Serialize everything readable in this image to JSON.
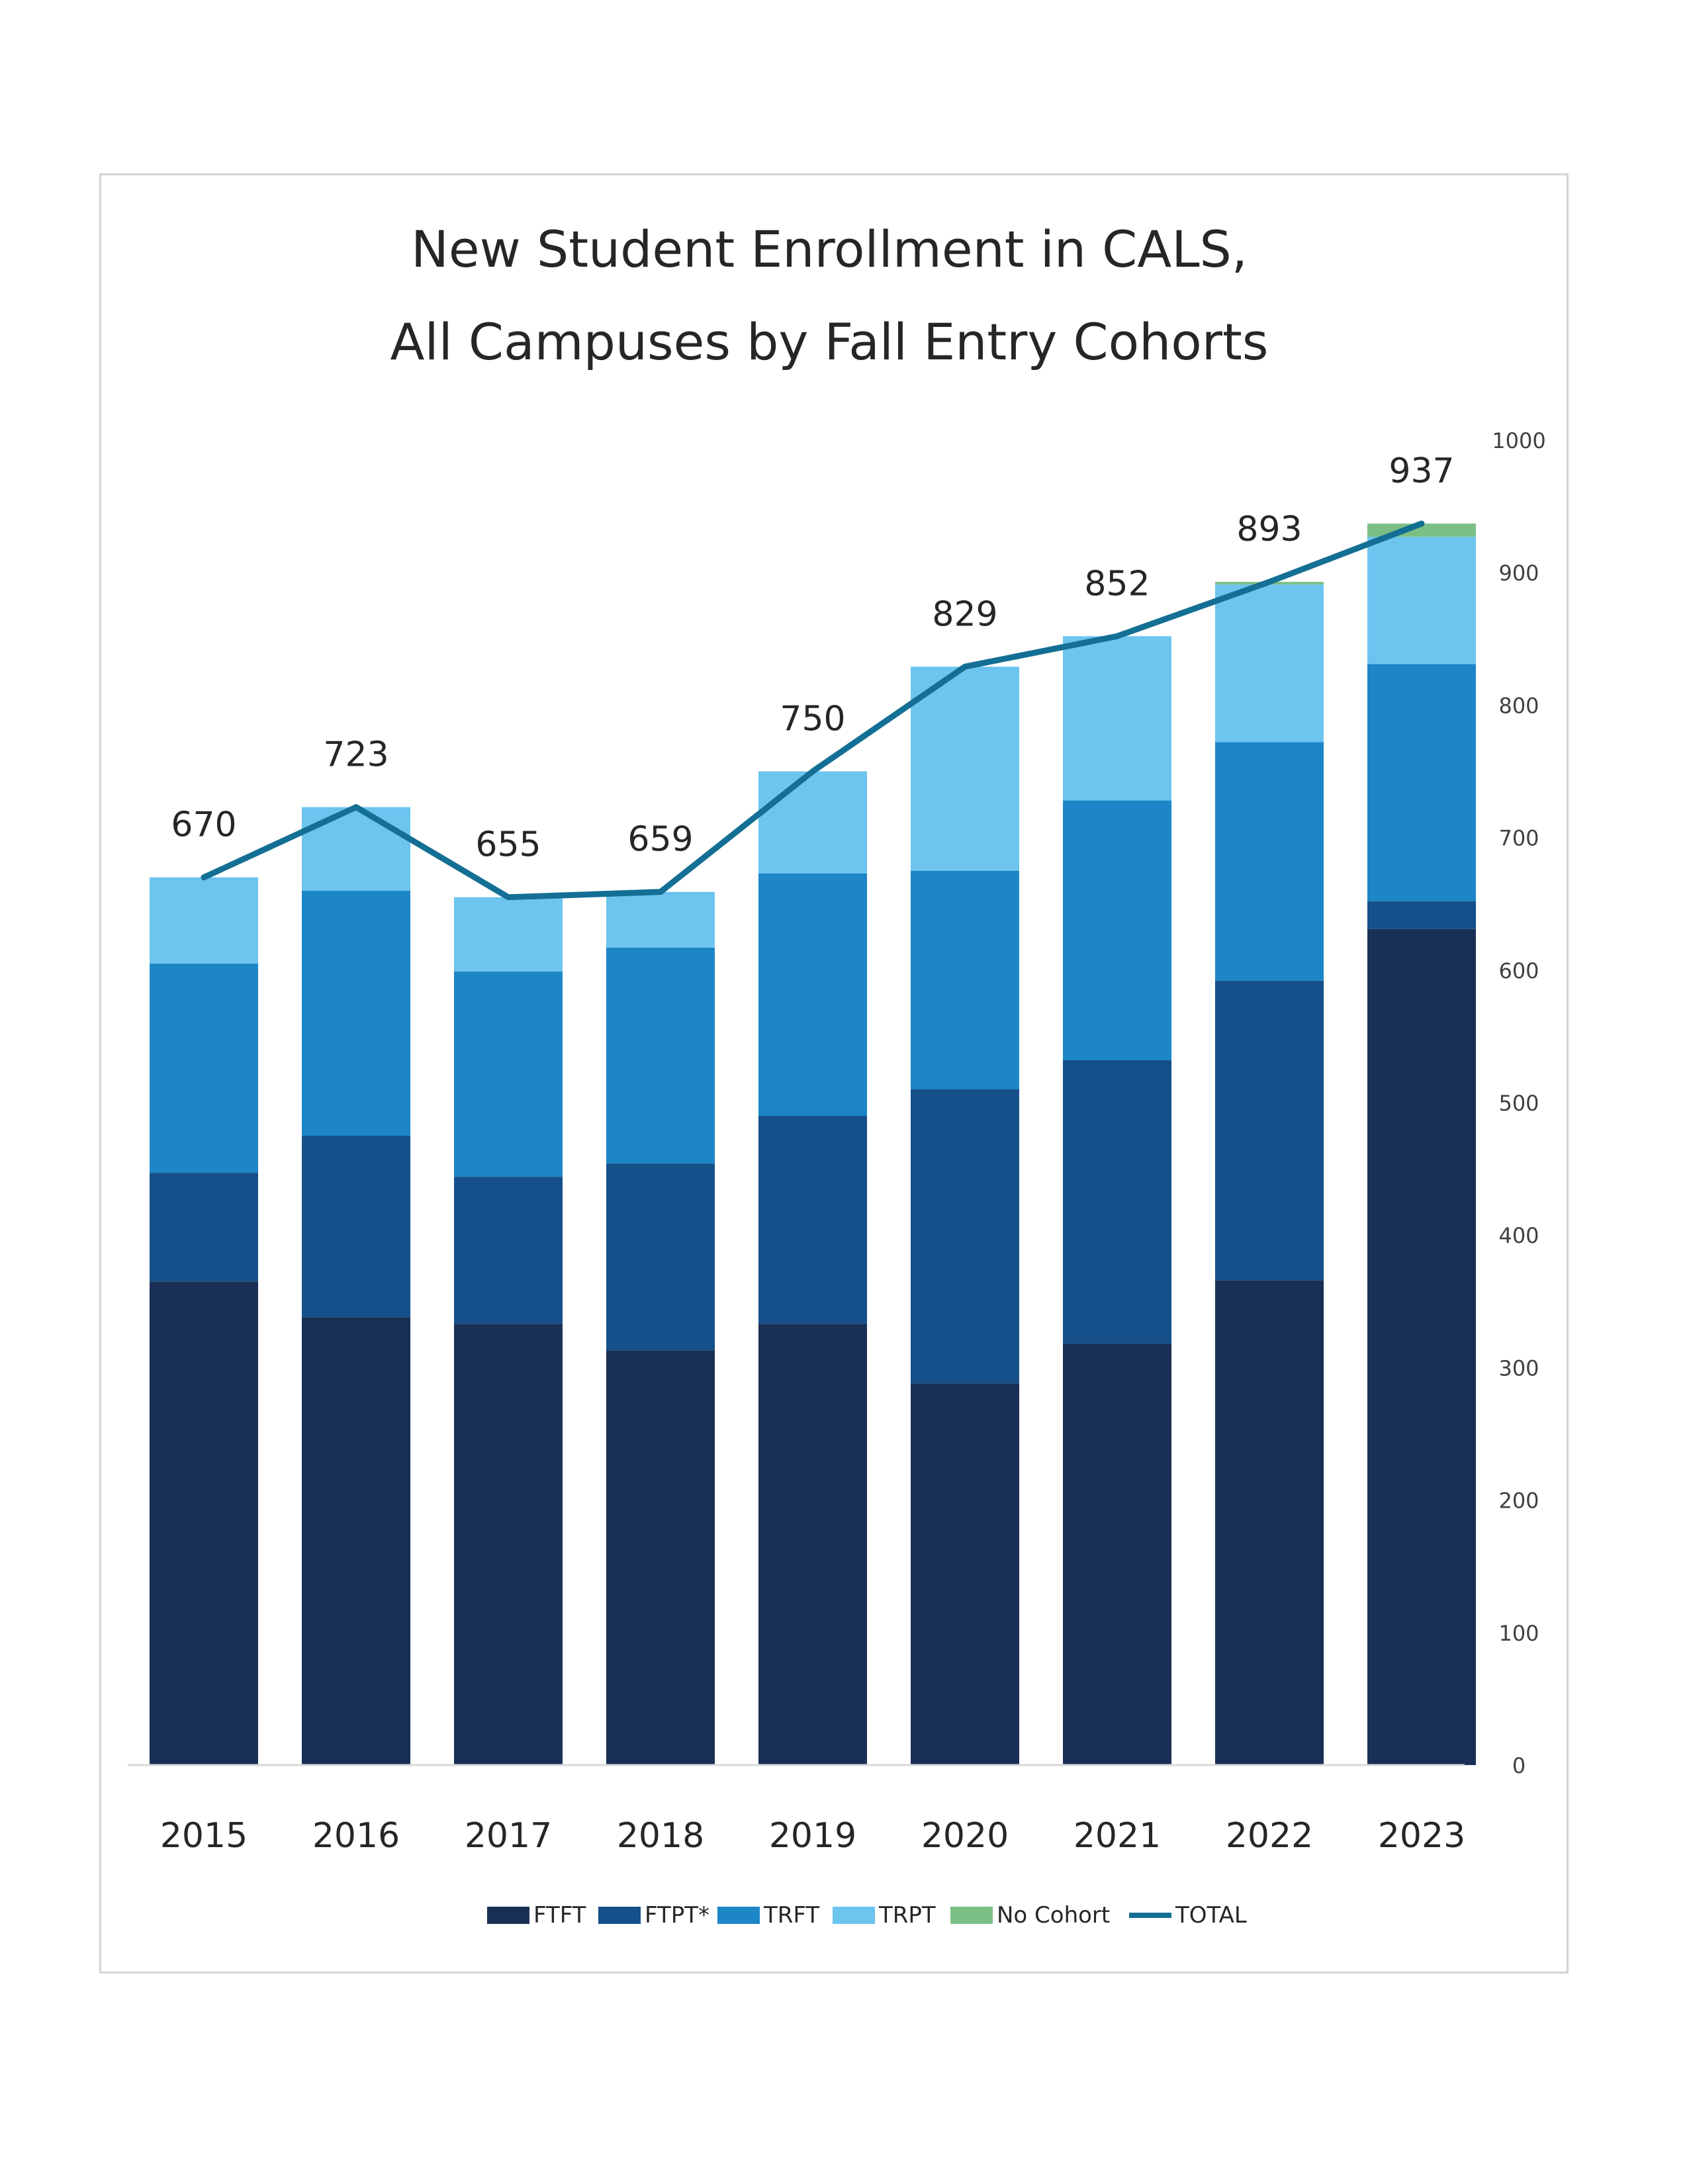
{
  "chart_data": {
    "type": "bar",
    "stacked": true,
    "title": [
      "New Student Enrollment in CALS,",
      "All Campuses by Fall Entry Cohorts"
    ],
    "categories": [
      "2015",
      "2016",
      "2017",
      "2018",
      "2019",
      "2020",
      "2021",
      "2022",
      "2023"
    ],
    "series": [
      {
        "name": "FTFT",
        "color": "#1a2f55",
        "values": [
          365,
          338,
          333,
          313,
          333,
          288,
          318,
          366,
          631
        ]
      },
      {
        "name": "FTPT*",
        "color": "#15508a",
        "values": [
          82,
          137,
          111,
          141,
          157,
          222,
          214,
          226,
          21
        ]
      },
      {
        "name": "TRFT",
        "color": "#1c86c6",
        "values": [
          158,
          185,
          155,
          163,
          183,
          165,
          196,
          180,
          179
        ]
      },
      {
        "name": "TRPT",
        "color": "#6cc4ef",
        "values": [
          65,
          63,
          56,
          42,
          77,
          154,
          124,
          119,
          96
        ]
      },
      {
        "name": "No Cohort",
        "color": "#7cbf86",
        "values": [
          0,
          0,
          0,
          0,
          0,
          0,
          0,
          2,
          10
        ]
      }
    ],
    "line": {
      "name": "TOTAL",
      "color": "#136f94",
      "values": [
        670,
        723,
        655,
        659,
        750,
        829,
        852,
        893,
        937
      ]
    },
    "data_labels": [
      "670",
      "723",
      "655",
      "659",
      "750",
      "829",
      "852",
      "893",
      "937"
    ],
    "yticks": [
      "0",
      "100",
      "200",
      "300",
      "400",
      "500",
      "600",
      "700",
      "800",
      "900",
      "1000"
    ],
    "ylim": [
      0,
      1000
    ],
    "y_axis_side": "right",
    "gridlines": false,
    "legend": {
      "position": "bottom",
      "items": [
        "FTFT",
        "FTPT*",
        "TRFT",
        "TRPT",
        "No Cohort",
        "TOTAL"
      ]
    }
  }
}
